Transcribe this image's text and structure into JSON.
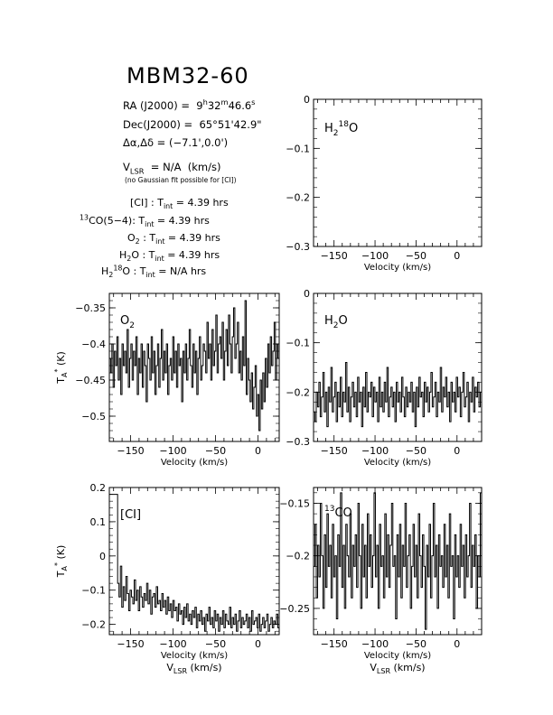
{
  "header": {
    "title": "MBM32-60",
    "ra": "RA (J2000) = 9h32m46.6s",
    "dec": "Dec(J2000) = 65°51'42.9\"",
    "offset": "Δα,Δδ = (-7.1',0.0')",
    "vlsr": "VLSR = N/A (km/s)",
    "note": "(no Gaussian fit possible for [CI])",
    "integration_times": [
      {
        "line": "[CI]",
        "value": "4.39 hrs"
      },
      {
        "line": "13CO(5-4)",
        "value": "4.39 hrs"
      },
      {
        "line": "O2",
        "value": "4.39 hrs"
      },
      {
        "line": "H2O",
        "value": "4.39 hrs"
      },
      {
        "line": "H2 18O",
        "value": "N/A hrs"
      }
    ]
  },
  "chart_data": [
    {
      "panel": "H2 18O",
      "type": "line",
      "label": "H2 18O",
      "xlabel": "Velocity (km/s)",
      "ylabel": "",
      "xlim": [
        -175,
        30
      ],
      "ylim": [
        -0.3,
        0.0
      ],
      "xticks": [
        -150,
        -100,
        -50,
        0
      ],
      "yticks": [
        0,
        -0.1,
        -0.2,
        -0.3
      ],
      "ytick_labels": [
        "0",
        "−0.1",
        "−0.2",
        "−0.3"
      ],
      "series": []
    },
    {
      "panel": "O2",
      "type": "line",
      "label": "O2",
      "xlabel": "Velocity (km/s)",
      "ylabel": "TA* (K)",
      "xlim": [
        -175,
        25
      ],
      "ylim": [
        -0.535,
        -0.33
      ],
      "xticks": [
        -150,
        -100,
        -50,
        0
      ],
      "yticks": [
        -0.35,
        -0.4,
        -0.45,
        -0.5
      ],
      "ytick_labels": [
        "−0.35",
        "−0.4",
        "−0.45",
        "−0.5"
      ],
      "series": [
        {
          "x_start": -175,
          "x_end": 25,
          "y": [
            -0.42,
            -0.44,
            -0.4,
            -0.46,
            -0.41,
            -0.43,
            -0.39,
            -0.45,
            -0.42,
            -0.47,
            -0.4,
            -0.43,
            -0.41,
            -0.44,
            -0.38,
            -0.46,
            -0.42,
            -0.4,
            -0.45,
            -0.41,
            -0.43,
            -0.39,
            -0.47,
            -0.42,
            -0.44,
            -0.4,
            -0.46,
            -0.41,
            -0.43,
            -0.48,
            -0.4,
            -0.42,
            -0.45,
            -0.39,
            -0.44,
            -0.41,
            -0.47,
            -0.43,
            -0.4,
            -0.46,
            -0.42,
            -0.38,
            -0.45,
            -0.41,
            -0.44,
            -0.4,
            -0.47,
            -0.43,
            -0.42,
            -0.45,
            -0.39,
            -0.44,
            -0.41,
            -0.46,
            -0.4,
            -0.43,
            -0.42,
            -0.48,
            -0.41,
            -0.44,
            -0.4,
            -0.45,
            -0.42,
            -0.38,
            -0.43,
            -0.46,
            -0.4,
            -0.44,
            -0.41,
            -0.47,
            -0.42,
            -0.39,
            -0.45,
            -0.43,
            -0.4,
            -0.41,
            -0.44,
            -0.37,
            -0.42,
            -0.4,
            -0.45,
            -0.38,
            -0.43,
            -0.41,
            -0.36,
            -0.44,
            -0.4,
            -0.39,
            -0.42,
            -0.37,
            -0.45,
            -0.41,
            -0.38,
            -0.43,
            -0.36,
            -0.4,
            -0.44,
            -0.39,
            -0.35,
            -0.42,
            -0.4,
            -0.37,
            -0.44,
            -0.41,
            -0.45,
            -0.39,
            -0.43,
            -0.34,
            -0.47,
            -0.42,
            -0.45,
            -0.48,
            -0.44,
            -0.49,
            -0.46,
            -0.43,
            -0.5,
            -0.47,
            -0.52,
            -0.45,
            -0.49,
            -0.44,
            -0.48,
            -0.42,
            -0.46,
            -0.4,
            -0.44,
            -0.39,
            -0.43,
            -0.41,
            -0.37,
            -0.45,
            -0.4,
            -0.42,
            -0.38
          ]
        }
      ]
    },
    {
      "panel": "H2O",
      "type": "line",
      "label": "H2O",
      "xlabel": "Velocity (km/s)",
      "ylabel": "",
      "xlim": [
        -175,
        30
      ],
      "ylim": [
        -0.3,
        0.0
      ],
      "xticks": [
        -150,
        -100,
        -50,
        0
      ],
      "yticks": [
        0,
        -0.1,
        -0.2,
        -0.3
      ],
      "ytick_labels": [
        "0",
        "−0.1",
        "−0.2",
        "−0.3"
      ],
      "series": [
        {
          "x_start": -175,
          "x_end": 30,
          "y": [
            -0.24,
            -0.26,
            -0.2,
            -0.23,
            -0.18,
            -0.25,
            -0.21,
            -0.16,
            -0.24,
            -0.2,
            -0.27,
            -0.19,
            -0.22,
            -0.15,
            -0.24,
            -0.21,
            -0.18,
            -0.26,
            -0.2,
            -0.23,
            -0.17,
            -0.25,
            -0.2,
            -0.22,
            -0.14,
            -0.24,
            -0.19,
            -0.26,
            -0.21,
            -0.18,
            -0.23,
            -0.2,
            -0.25,
            -0.17,
            -0.22,
            -0.2,
            -0.27,
            -0.19,
            -0.23,
            -0.16,
            -0.24,
            -0.2,
            -0.21,
            -0.18,
            -0.25,
            -0.19,
            -0.22,
            -0.2,
            -0.26,
            -0.17,
            -0.23,
            -0.2,
            -0.24,
            -0.18,
            -0.22,
            -0.15,
            -0.25,
            -0.21,
            -0.19,
            -0.23,
            -0.2,
            -0.26,
            -0.18,
            -0.22,
            -0.2,
            -0.24,
            -0.17,
            -0.21,
            -0.25,
            -0.19,
            -0.23,
            -0.2,
            -0.22,
            -0.18,
            -0.24,
            -0.2,
            -0.27,
            -0.19,
            -0.23,
            -0.17,
            -0.21,
            -0.2,
            -0.25,
            -0.18,
            -0.22,
            -0.19,
            -0.24,
            -0.2,
            -0.16,
            -0.23,
            -0.21,
            -0.18,
            -0.25,
            -0.2,
            -0.22,
            -0.15,
            -0.24,
            -0.19,
            -0.21,
            -0.17,
            -0.23,
            -0.2,
            -0.26,
            -0.18,
            -0.22,
            -0.2,
            -0.24,
            -0.17,
            -0.21,
            -0.19,
            -0.25,
            -0.2,
            -0.16,
            -0.23,
            -0.21,
            -0.18,
            -0.26,
            -0.2,
            -0.22,
            -0.17,
            -0.24,
            -0.19,
            -0.21,
            -0.18,
            -0.23,
            -0.2,
            -0.28
          ]
        }
      ]
    },
    {
      "panel": "[CI]",
      "type": "line",
      "label": "[CI]",
      "xlabel": "Velocity (km/s)",
      "ylabel": "TA* (K)",
      "xlabel2": "VLSR (km/s)",
      "xlim": [
        -175,
        25
      ],
      "ylim": [
        -0.23,
        0.2
      ],
      "xticks": [
        -150,
        -100,
        -50,
        0
      ],
      "yticks": [
        0.2,
        0.1,
        0,
        -0.1,
        -0.2
      ],
      "ytick_labels": [
        "0.2",
        "0.1",
        "0",
        "−0.1",
        "−0.2"
      ],
      "series": [
        {
          "x_start": -175,
          "x_end": 25,
          "y": [
            0.18,
            0.18,
            0.18,
            0.18,
            0.18,
            0.18,
            -0.08,
            -0.12,
            -0.03,
            -0.15,
            -0.09,
            -0.13,
            -0.06,
            -0.11,
            -0.16,
            -0.1,
            -0.12,
            -0.14,
            -0.07,
            -0.13,
            -0.1,
            -0.16,
            -0.09,
            -0.12,
            -0.15,
            -0.11,
            -0.13,
            -0.08,
            -0.14,
            -0.1,
            -0.17,
            -0.12,
            -0.11,
            -0.15,
            -0.09,
            -0.14,
            -0.13,
            -0.16,
            -0.11,
            -0.15,
            -0.13,
            -0.17,
            -0.12,
            -0.16,
            -0.14,
            -0.18,
            -0.13,
            -0.16,
            -0.15,
            -0.19,
            -0.14,
            -0.17,
            -0.16,
            -0.2,
            -0.15,
            -0.18,
            -0.14,
            -0.19,
            -0.17,
            -0.2,
            -0.16,
            -0.18,
            -0.15,
            -0.21,
            -0.17,
            -0.19,
            -0.16,
            -0.2,
            -0.18,
            -0.22,
            -0.17,
            -0.19,
            -0.15,
            -0.2,
            -0.18,
            -0.21,
            -0.16,
            -0.19,
            -0.17,
            -0.22,
            -0.18,
            -0.2,
            -0.16,
            -0.21,
            -0.17,
            -0.19,
            -0.2,
            -0.15,
            -0.21,
            -0.18,
            -0.2,
            -0.17,
            -0.22,
            -0.19,
            -0.16,
            -0.21,
            -0.18,
            -0.2,
            -0.19,
            -0.17,
            -0.21,
            -0.18,
            -0.22,
            -0.16,
            -0.2,
            -0.19,
            -0.18,
            -0.21,
            -0.17,
            -0.22,
            -0.2,
            -0.18,
            -0.21,
            -0.19,
            -0.17,
            -0.22,
            -0.2,
            -0.18,
            -0.21,
            -0.19,
            -0.2,
            -0.17,
            -0.21,
            -0.18
          ]
        }
      ]
    },
    {
      "panel": "13CO",
      "type": "line",
      "label": "13CO",
      "xlabel": "Velocity (km/s)",
      "ylabel": "",
      "xlabel2": "VLSR (km/s)",
      "xlim": [
        -175,
        30
      ],
      "ylim": [
        -0.275,
        -0.135
      ],
      "xticks": [
        -150,
        -100,
        -50,
        0
      ],
      "yticks": [
        -0.15,
        -0.2,
        -0.25
      ],
      "ytick_labels": [
        "−0.15",
        "−0.2",
        "−0.25"
      ],
      "series": [
        {
          "x_start": -175,
          "x_end": 30,
          "y": [
            -0.21,
            -0.17,
            -0.24,
            -0.19,
            -0.22,
            -0.15,
            -0.2,
            -0.25,
            -0.18,
            -0.23,
            -0.16,
            -0.21,
            -0.19,
            -0.24,
            -0.17,
            -0.22,
            -0.2,
            -0.26,
            -0.18,
            -0.21,
            -0.14,
            -0.23,
            -0.19,
            -0.25,
            -0.17,
            -0.2,
            -0.22,
            -0.16,
            -0.24,
            -0.19,
            -0.21,
            -0.18,
            -0.23,
            -0.15,
            -0.2,
            -0.25,
            -0.17,
            -0.22,
            -0.19,
            -0.24,
            -0.16,
            -0.21,
            -0.18,
            -0.23,
            -0.2,
            -0.14,
            -0.22,
            -0.19,
            -0.25,
            -0.17,
            -0.21,
            -0.2,
            -0.24,
            -0.16,
            -0.22,
            -0.18,
            -0.23,
            -0.19,
            -0.15,
            -0.21,
            -0.2,
            -0.26,
            -0.18,
            -0.22,
            -0.17,
            -0.24,
            -0.19,
            -0.21,
            -0.15,
            -0.23,
            -0.2,
            -0.18,
            -0.25,
            -0.21,
            -0.17,
            -0.22,
            -0.19,
            -0.24,
            -0.16,
            -0.2,
            -0.23,
            -0.18,
            -0.21,
            -0.27,
            -0.19,
            -0.22,
            -0.17,
            -0.24,
            -0.2,
            -0.15,
            -0.22,
            -0.19,
            -0.25,
            -0.18,
            -0.21,
            -0.2,
            -0.23,
            -0.17,
            -0.22,
            -0.19,
            -0.24,
            -0.16,
            -0.21,
            -0.2,
            -0.26,
            -0.18,
            -0.22,
            -0.2,
            -0.23,
            -0.17,
            -0.21,
            -0.19,
            -0.24,
            -0.18,
            -0.22,
            -0.2,
            -0.15,
            -0.23,
            -0.19,
            -0.21,
            -0.18,
            -0.25,
            -0.2,
            -0.22,
            -0.14,
            -0.24
          ]
        }
      ]
    }
  ]
}
